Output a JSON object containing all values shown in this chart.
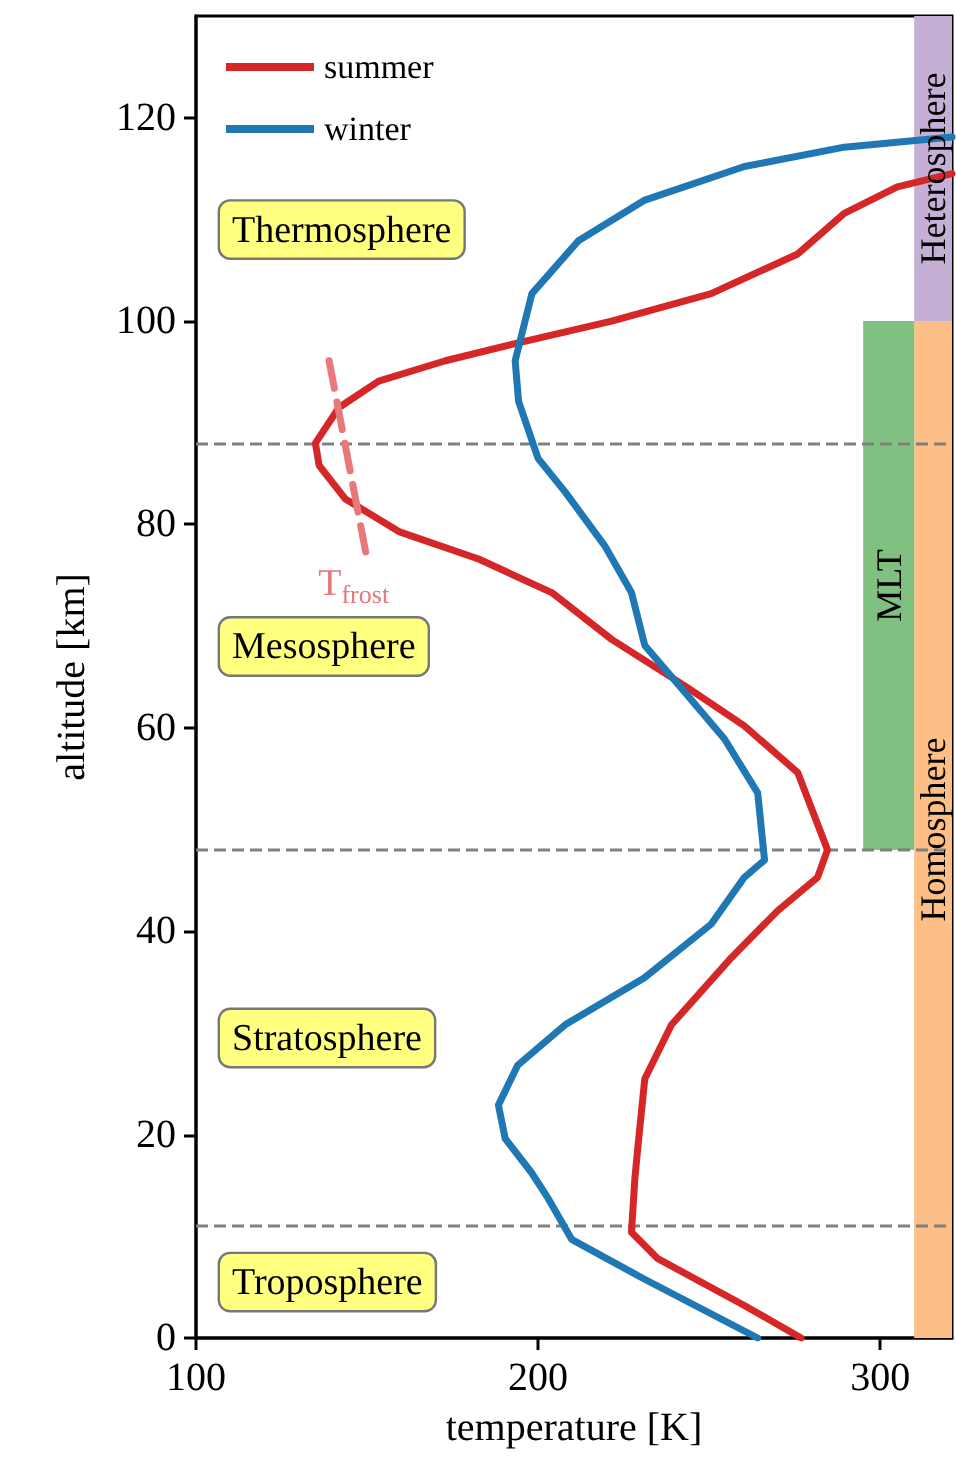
{
  "chart_data": {
    "type": "line",
    "xlabel": "temperature [K]",
    "ylabel": "altitude [km]",
    "xlim": [
      100,
      321
    ],
    "xticks": [
      100,
      200,
      300
    ],
    "ylim": [
      0,
      130
    ],
    "yticks": [
      0,
      20,
      40,
      60,
      80,
      100,
      120
    ],
    "grid": false,
    "legend": "top left",
    "line_style": "solid",
    "marker": "none",
    "series": [
      {
        "name": "summer",
        "color": "#d62728",
        "x": [
          276.9,
          260.3,
          235,
          227.3,
          228.3,
          229.2,
          231.2,
          239,
          256.5,
          270,
          281.7,
          284.6,
          275.9,
          260.3,
          243,
          221.5,
          204,
          182.6,
          159.3,
          143.7,
          136,
          134.9,
          141.8,
          153.4,
          172.9,
          192.3,
          221.5,
          250.6,
          275.9,
          289.5,
          305,
          321
        ],
        "values": [
          0,
          3.2,
          7.8,
          10.4,
          15.7,
          18.9,
          25.5,
          30.8,
          37.4,
          42,
          45.3,
          48,
          55.6,
          60.2,
          64.1,
          68.7,
          73.3,
          76.6,
          79.3,
          82.5,
          85.8,
          88,
          91.5,
          94.1,
          96.1,
          97.7,
          100,
          102.7,
          106.6,
          110.6,
          113.2,
          114.5
        ]
      },
      {
        "name": "winter",
        "color": "#1f77b4",
        "x": [
          264.2,
          231,
          209.8,
          203,
          198,
          190.4,
          188.4,
          194,
          207.9,
          231,
          250.6,
          260.3,
          266.2,
          264.2,
          254.5,
          242.9,
          231.2,
          227.3,
          219.5,
          207.9,
          200,
          194.3,
          193.3,
          198.2,
          211.8,
          231.2,
          260.3,
          289.5,
          321
        ],
        "values": [
          0,
          5.8,
          9.7,
          13.7,
          16.3,
          19.6,
          22.9,
          26.8,
          30.8,
          35.4,
          40.7,
          45.3,
          47,
          53.6,
          58.9,
          63.5,
          68.1,
          73.3,
          77.9,
          83.2,
          86.5,
          92.1,
          96.1,
          102.7,
          107.9,
          111.9,
          115.2,
          117.1,
          118.1
        ]
      },
      {
        "color": "#e8787a",
        "line_style": "dashed",
        "x": [
          138.9,
          149.6
        ],
        "values": [
          96.1,
          77.3
        ]
      }
    ],
    "ref_lines": [
      {
        "axis": "y",
        "value": 11,
        "color": "#808080",
        "line_style": "dashed"
      },
      {
        "axis": "y",
        "value": 48,
        "color": "#808080",
        "line_style": "dashed"
      },
      {
        "axis": "y",
        "value": 88,
        "color": "#808080",
        "line_style": "dashed"
      }
    ],
    "bands": [
      {
        "axis": "y",
        "from": 0,
        "to": 100,
        "label": "Homosphere",
        "color": "#fdbf85"
      },
      {
        "axis": "y",
        "from": 100,
        "to": 130,
        "label": "Heterosphere",
        "color": "#c5b0d5"
      },
      {
        "axis": "y",
        "from": 48,
        "to": 100,
        "label": "MLT",
        "color": "#80c080"
      }
    ],
    "annotations": [
      "Thermosphere",
      "Mesosphere",
      "Stratosphere",
      "Troposphere",
      "T$_{frost}$"
    ]
  }
}
